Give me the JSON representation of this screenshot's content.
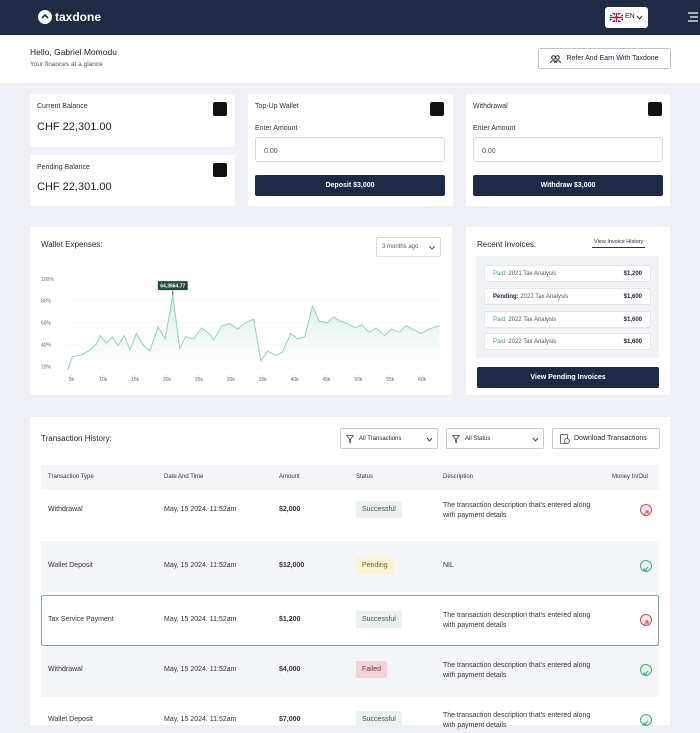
{
  "header": {
    "logo": "taxdone",
    "language": "EN"
  },
  "greeting": {
    "title": "Hello, Gabriel Momodu",
    "subtitle": "Your finances at a glance",
    "button": "Refer And Earn With Taxdone"
  },
  "balances": [
    {
      "label": "Current Balance",
      "amount": "CHF 22,301.00"
    },
    {
      "label": "Pending Balance",
      "amount": "CHF 22,301.00"
    }
  ],
  "top_up": {
    "title": "Top-Up Wallet",
    "field_label": "Enter Amount",
    "placeholder": "0.00",
    "button": "Deposit $3,000"
  },
  "withdraw": {
    "title": "Withdrawal",
    "field_label": "Enter Amount",
    "placeholder": "0.00",
    "button": "Withdraw $3,000"
  },
  "wallet_expenses": {
    "title": "Wallet Expenses:",
    "period": "3 months ago",
    "chart": {
      "type": "line",
      "annotation": "64,3664.77",
      "x": [
        4400,
        5200,
        6400,
        7700,
        8900,
        9500,
        10500,
        11400,
        12300,
        13300,
        14200,
        15200,
        16200,
        17300,
        18600,
        19700,
        20900,
        22000,
        22900,
        24200,
        25400,
        26600,
        27300,
        28600,
        29800,
        31100,
        32300,
        33600,
        34700,
        35800,
        37000,
        38100,
        39400,
        40500,
        41600,
        42800,
        43900,
        45200,
        46100,
        47200,
        48300,
        49500,
        50500,
        51700,
        52800,
        54100,
        55200,
        56400,
        57500,
        58800,
        59800,
        61100,
        62700
      ],
      "values": [
        17,
        29,
        30,
        34,
        40,
        48,
        41,
        47,
        39,
        48,
        35,
        50,
        40,
        34,
        56,
        45,
        85,
        36,
        47,
        45,
        55,
        50,
        44,
        57,
        59,
        54,
        60,
        63,
        25,
        34,
        30,
        33,
        50,
        45,
        47,
        75,
        61,
        60,
        65,
        61,
        59,
        55,
        58,
        51,
        55,
        48,
        54,
        51,
        57,
        53,
        50,
        54,
        57
      ],
      "xlim": [
        4000,
        62800
      ],
      "ylim": [
        12,
        108
      ],
      "xticks": [
        {
          "value": 5000,
          "label": "5k"
        },
        {
          "value": 10000,
          "label": "10k"
        },
        {
          "value": 15000,
          "label": "15k"
        },
        {
          "value": 20000,
          "label": "20k"
        },
        {
          "value": 25000,
          "label": "25k"
        },
        {
          "value": 30000,
          "label": "30k"
        },
        {
          "value": 35000,
          "label": "35k"
        },
        {
          "value": 40000,
          "label": "40k"
        },
        {
          "value": 45000,
          "label": "45k"
        },
        {
          "value": 50000,
          "label": "50k"
        },
        {
          "value": 55000,
          "label": "55k"
        },
        {
          "value": 60000,
          "label": "60k"
        }
      ],
      "yticks": [
        {
          "value": 20,
          "label": "20%"
        },
        {
          "value": 40,
          "label": "40%"
        },
        {
          "value": 60,
          "label": "60%"
        },
        {
          "value": 80,
          "label": "80%"
        },
        {
          "value": 100,
          "label": "100%"
        }
      ],
      "color": "#8fd3b8"
    }
  },
  "recent_invoices": {
    "title": "Recent Invoices:",
    "link": "View Invoice History",
    "items": [
      {
        "status": "Paid:",
        "name": "2021 Tax Analysis",
        "amount": "$1,200"
      },
      {
        "status": "Pending:",
        "name": "2022 Tax Analysis",
        "amount": "$1,600"
      },
      {
        "status": "Paid:",
        "name": "2022 Tax Analysis",
        "amount": "$1,600"
      },
      {
        "status": "Paid:",
        "name": "2022 Tax Analysis",
        "amount": "$1,600"
      }
    ],
    "button": "View Pending Invoices"
  },
  "transactions": {
    "title": "Transaction History:",
    "filters": [
      "All Transactions",
      "All Status"
    ],
    "download": "Download Transactions",
    "columns": [
      "Transaction Type",
      "Date And Time",
      "Amount",
      "Status",
      "Description",
      "Money In/Out"
    ],
    "rows": [
      [
        "Withdrawal",
        "May, 15 2024. 11:52am",
        "$2,000",
        "Successful",
        "The transaction description that's entered along with payment details"
      ],
      [
        "Wallet Deposit",
        "May, 15 2024. 11:52am",
        "$12,000",
        "Pending",
        "NIL"
      ],
      [
        "Tax Service Payment",
        "May, 15 2024. 11:52am",
        "$1,200",
        "Successful",
        "The transaction description that's entered along with payment details"
      ],
      [
        "Withdrawal",
        "May, 15 2024. 11:52am",
        "$4,000",
        "Failed",
        "The transaction description that's entered along with payment details"
      ],
      [
        "Wallet Deposit",
        "May, 15 2024. 11:52am",
        "$7,000",
        "Successful",
        "The transaction description that's entered along with payment details"
      ]
    ]
  }
}
